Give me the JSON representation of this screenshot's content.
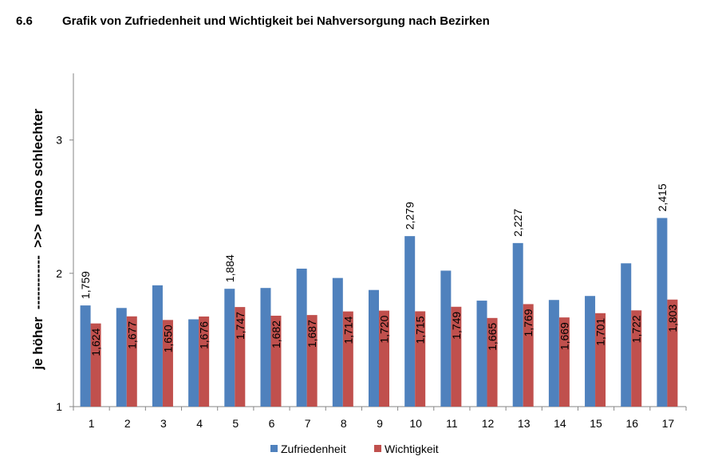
{
  "heading": {
    "number": "6.6",
    "title": "Grafik von Zufriedenheit und Wichtigkeit bei Nahversorgung nach Bezirken"
  },
  "chart_data": {
    "type": "bar",
    "ylabel": "je höher  ------------  >>>  umso schlechter",
    "xlabel": "",
    "ylim": [
      1,
      3.5
    ],
    "yticks": [
      1,
      2,
      3
    ],
    "categories": [
      "1",
      "2",
      "3",
      "4",
      "5",
      "6",
      "7",
      "8",
      "9",
      "10",
      "11",
      "12",
      "13",
      "14",
      "15",
      "16",
      "17"
    ],
    "series": [
      {
        "name": "Zufriedenheit",
        "color": "#4f81bd",
        "values": [
          1.759,
          1.74,
          1.91,
          1.655,
          1.884,
          1.89,
          2.035,
          1.965,
          1.875,
          2.279,
          2.02,
          1.795,
          2.227,
          1.8,
          1.83,
          2.075,
          2.415
        ],
        "labels": [
          "1,759",
          "",
          "",
          "",
          "1,884",
          "",
          "",
          "",
          "",
          "2,279",
          "",
          "",
          "2,227",
          "",
          "",
          "",
          "2,415"
        ]
      },
      {
        "name": "Wichtigkeit",
        "color": "#c0504d",
        "values": [
          1.624,
          1.677,
          1.65,
          1.676,
          1.747,
          1.682,
          1.687,
          1.714,
          1.72,
          1.715,
          1.749,
          1.665,
          1.769,
          1.669,
          1.701,
          1.722,
          1.803
        ],
        "labels": [
          "1,624",
          "1,677",
          "1,650",
          "1,676",
          "1,747",
          "1,682",
          "1,687",
          "1,714",
          "1,720",
          "1,715",
          "1,749",
          "1,665",
          "1,769",
          "1,669",
          "1,701",
          "1,722",
          "1,803"
        ]
      }
    ],
    "legend_position": "bottom"
  }
}
